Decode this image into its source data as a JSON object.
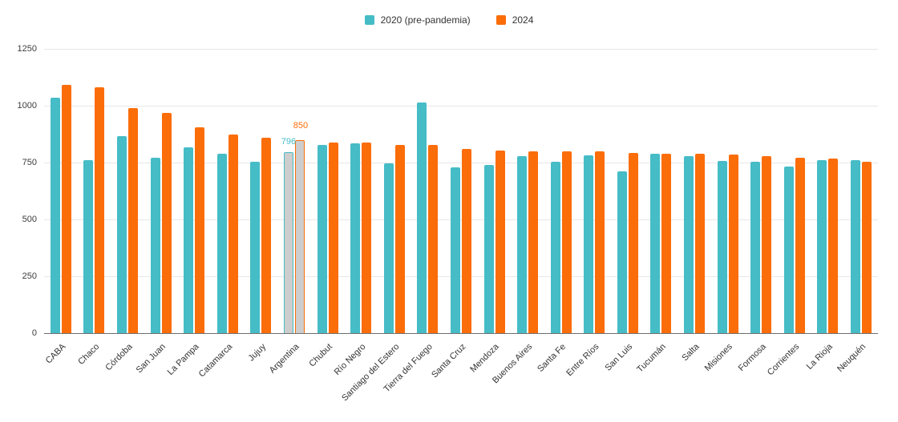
{
  "legend": {
    "items": [
      {
        "label": "2020 (pre-pandemia)",
        "color": "#45BCC6"
      },
      {
        "label": "2024",
        "color": "#FB6D09"
      }
    ]
  },
  "chart_data": {
    "type": "bar",
    "title": "",
    "xlabel": "",
    "ylabel": "",
    "categories": [
      "CABA",
      "Chaco",
      "Córdoba",
      "San Juan",
      "La Pampa",
      "Catamarca",
      "Jujuy",
      "Argentina",
      "Chubut",
      "Río Negro",
      "Santiago del Estero",
      "Tierra del Fuego",
      "Santa Cruz",
      "Mendoza",
      "Buenos Aires",
      "Santa Fe",
      "Entre Ríos",
      "San Luis",
      "Tucumán",
      "Salta",
      "Misiones",
      "Formosa",
      "Corrientes",
      "La Rioja",
      "Neuquén"
    ],
    "series": [
      {
        "name": "2020 (pre-pandemia)",
        "color": "#45BCC6",
        "values": [
          1035,
          762,
          865,
          770,
          818,
          790,
          752,
          796,
          828,
          835,
          745,
          1015,
          730,
          740,
          778,
          755,
          780,
          712,
          788,
          778,
          757,
          753,
          732,
          760,
          760
        ]
      },
      {
        "name": "2024",
        "color": "#FB6D09",
        "values": [
          1090,
          1080,
          990,
          970,
          905,
          875,
          860,
          850,
          838,
          838,
          827,
          826,
          810,
          803,
          801,
          800,
          800,
          792,
          790,
          790,
          787,
          778,
          771,
          769,
          754
        ]
      }
    ],
    "highlight": {
      "category": "Argentina",
      "index": 7,
      "fill": "#CDCDCD",
      "value_labels": [
        "796",
        "850"
      ]
    },
    "y_axis": {
      "min": 0,
      "max": 1250,
      "ticks": [
        0,
        250,
        500,
        750,
        1000,
        1250
      ]
    },
    "grid": true,
    "legend_position": "top"
  }
}
